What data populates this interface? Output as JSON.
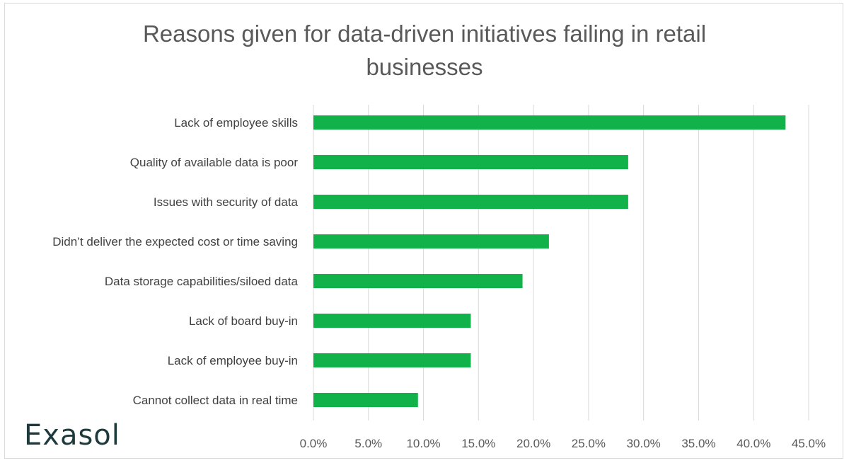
{
  "colors": {
    "bar": "#12b24b",
    "grid": "#d9d9d9",
    "logo": "#1f3a3d"
  },
  "logo": {
    "text": "Exasol"
  },
  "chart_data": {
    "type": "bar",
    "orientation": "horizontal",
    "title": "Reasons given for data-driven initiatives failing in retail businesses",
    "title_lines": [
      "Reasons given for data-driven initiatives failing in retail",
      "businesses"
    ],
    "categories": [
      "Lack of employee skills",
      "Quality of available data is poor",
      "Issues with security of data",
      "Didn’t deliver the expected cost or time saving",
      "Data storage capabilities/siloed data",
      "Lack of board buy-in",
      "Lack of employee buy-in",
      "Cannot collect data in real time"
    ],
    "values": [
      42.9,
      28.6,
      28.6,
      21.4,
      19.0,
      14.3,
      14.3,
      9.5
    ],
    "xlim": [
      0,
      45
    ],
    "xticks": [
      "0.0%",
      "5.0%",
      "10.0%",
      "15.0%",
      "20.0%",
      "25.0%",
      "30.0%",
      "35.0%",
      "40.0%",
      "45.0%"
    ],
    "xlabel": "",
    "ylabel": "",
    "grid": "vertical",
    "legend": "none"
  }
}
